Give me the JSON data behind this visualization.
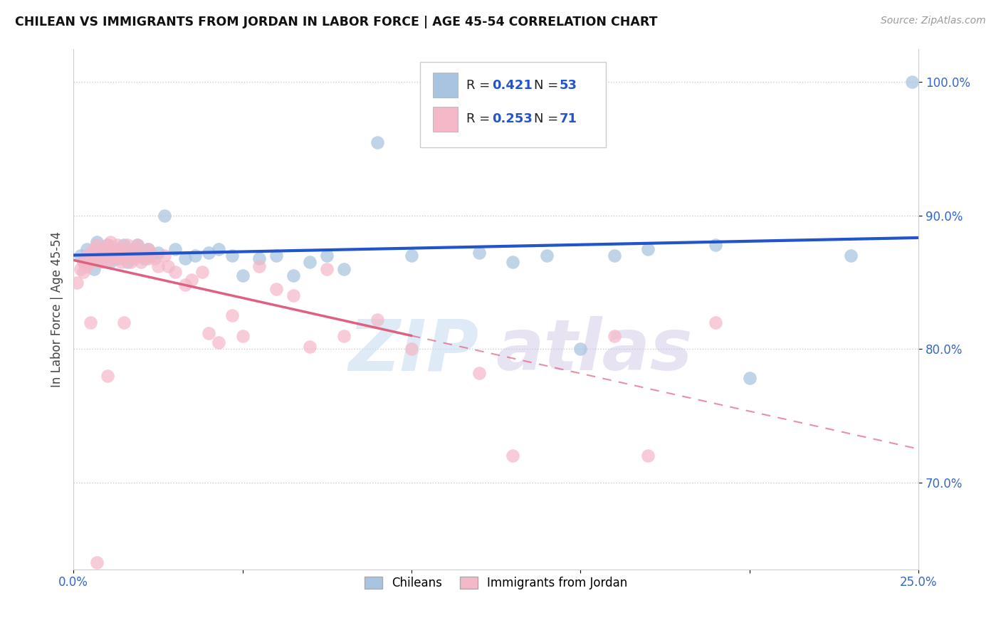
{
  "title": "CHILEAN VS IMMIGRANTS FROM JORDAN IN LABOR FORCE | AGE 45-54 CORRELATION CHART",
  "source": "Source: ZipAtlas.com",
  "ylabel": "In Labor Force | Age 45-54",
  "xlim": [
    0.0,
    0.25
  ],
  "ylim": [
    0.635,
    1.025
  ],
  "xticks": [
    0.0,
    0.05,
    0.1,
    0.15,
    0.2,
    0.25
  ],
  "xticklabels": [
    "0.0%",
    "",
    "",
    "",
    "",
    "25.0%"
  ],
  "yticks": [
    0.7,
    0.8,
    0.9,
    1.0
  ],
  "yticklabels": [
    "70.0%",
    "80.0%",
    "90.0%",
    "100.0%"
  ],
  "chilean_color": "#a8c4e0",
  "jordan_color": "#f4b8c8",
  "line_blue": "#2255cc",
  "line_pink": "#e06080",
  "R_chilean": 0.421,
  "N_chilean": 53,
  "R_jordan": 0.253,
  "N_jordan": 71,
  "legend_label_chilean": "Chileans",
  "legend_label_jordan": "Immigrants from Jordan",
  "watermark_zip": "ZIP",
  "watermark_atlas": "atlas",
  "grid_color": "#cccccc",
  "background_color": "#ffffff",
  "chilean_x": [
    0.002,
    0.003,
    0.004,
    0.005,
    0.006,
    0.007,
    0.007,
    0.008,
    0.009,
    0.01,
    0.01,
    0.011,
    0.012,
    0.013,
    0.013,
    0.014,
    0.015,
    0.016,
    0.017,
    0.018,
    0.019,
    0.02,
    0.021,
    0.022,
    0.023,
    0.025,
    0.027,
    0.03,
    0.033,
    0.036,
    0.04,
    0.043,
    0.047,
    0.05,
    0.055,
    0.06,
    0.065,
    0.07,
    0.075,
    0.08,
    0.09,
    0.1,
    0.11,
    0.12,
    0.13,
    0.14,
    0.15,
    0.16,
    0.17,
    0.19,
    0.2,
    0.23,
    0.248
  ],
  "chilean_y": [
    0.87,
    0.865,
    0.875,
    0.868,
    0.86,
    0.872,
    0.88,
    0.868,
    0.875,
    0.87,
    0.878,
    0.865,
    0.87,
    0.875,
    0.868,
    0.872,
    0.878,
    0.865,
    0.87,
    0.875,
    0.878,
    0.87,
    0.868,
    0.875,
    0.87,
    0.872,
    0.9,
    0.875,
    0.868,
    0.87,
    0.872,
    0.875,
    0.87,
    0.855,
    0.868,
    0.87,
    0.855,
    0.865,
    0.87,
    0.86,
    0.955,
    0.87,
    0.96,
    0.872,
    0.865,
    0.87,
    0.8,
    0.87,
    0.875,
    0.878,
    0.778,
    0.87,
    1.0
  ],
  "jordan_x": [
    0.001,
    0.002,
    0.003,
    0.003,
    0.004,
    0.004,
    0.005,
    0.005,
    0.006,
    0.006,
    0.007,
    0.007,
    0.008,
    0.008,
    0.009,
    0.009,
    0.01,
    0.01,
    0.01,
    0.011,
    0.011,
    0.012,
    0.012,
    0.013,
    0.013,
    0.014,
    0.014,
    0.015,
    0.015,
    0.016,
    0.016,
    0.017,
    0.017,
    0.018,
    0.018,
    0.019,
    0.019,
    0.02,
    0.021,
    0.022,
    0.022,
    0.023,
    0.024,
    0.025,
    0.027,
    0.028,
    0.03,
    0.033,
    0.035,
    0.038,
    0.04,
    0.043,
    0.047,
    0.05,
    0.055,
    0.06,
    0.065,
    0.07,
    0.075,
    0.08,
    0.09,
    0.1,
    0.12,
    0.13,
    0.16,
    0.17,
    0.19,
    0.005,
    0.01,
    0.015,
    0.007
  ],
  "jordan_y": [
    0.85,
    0.86,
    0.858,
    0.865,
    0.862,
    0.87,
    0.865,
    0.872,
    0.868,
    0.875,
    0.87,
    0.878,
    0.865,
    0.872,
    0.868,
    0.875,
    0.87,
    0.878,
    0.865,
    0.872,
    0.88,
    0.868,
    0.875,
    0.87,
    0.878,
    0.865,
    0.872,
    0.868,
    0.875,
    0.87,
    0.878,
    0.865,
    0.872,
    0.868,
    0.875,
    0.87,
    0.878,
    0.865,
    0.87,
    0.875,
    0.868,
    0.872,
    0.868,
    0.862,
    0.87,
    0.862,
    0.858,
    0.848,
    0.852,
    0.858,
    0.812,
    0.805,
    0.825,
    0.81,
    0.862,
    0.845,
    0.84,
    0.802,
    0.86,
    0.81,
    0.822,
    0.8,
    0.782,
    0.72,
    0.81,
    0.72,
    0.82,
    0.82,
    0.78,
    0.82,
    0.64
  ]
}
